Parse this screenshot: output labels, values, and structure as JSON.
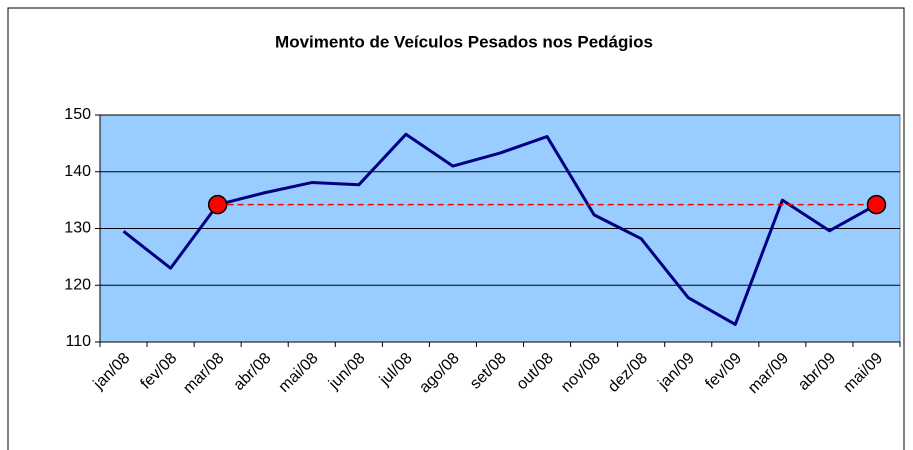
{
  "chart_data": {
    "type": "line",
    "title": "Movimento de Veículos Pesados nos Pedágios",
    "categories": [
      "jan/08",
      "fev/08",
      "mar/08",
      "abr/08",
      "mai/08",
      "jun/08",
      "jul/08",
      "ago/08",
      "set/08",
      "out/08",
      "nov/08",
      "dez/08",
      "jan/09",
      "fev/09",
      "mar/09",
      "abr/09",
      "mai/09"
    ],
    "series": [
      {
        "color": "#000080",
        "values": [
          129.5,
          123,
          134.2,
          136.3,
          138.1,
          137.7,
          146.6,
          141,
          143.3,
          146.2,
          132.4,
          128.2,
          117.8,
          113.1,
          135,
          129.6,
          134.2
        ]
      },
      {
        "color": "#ff0000",
        "dashed": true,
        "endpoint_markers": true,
        "values": [
          null,
          null,
          134.2,
          134.2,
          134.2,
          134.2,
          134.2,
          134.2,
          134.2,
          134.2,
          134.2,
          134.2,
          134.2,
          134.2,
          134.2,
          134.2,
          134.2
        ]
      }
    ],
    "ylim": [
      110,
      150
    ],
    "yticks": [
      110,
      120,
      130,
      140,
      150
    ],
    "grid": true,
    "background": "#99ccff"
  }
}
